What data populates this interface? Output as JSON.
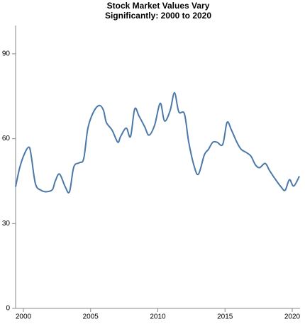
{
  "chart_data": {
    "type": "line",
    "title": [
      "Stock Market Values Vary",
      "Significantly: 2000 to 2020"
    ],
    "x": [
      1999.42,
      1999.74,
      2000.11,
      2000.42,
      2000.58,
      2000.9,
      2001.32,
      2001.74,
      2002.16,
      2002.37,
      2002.69,
      2003.11,
      2003.43,
      2003.75,
      2004.17,
      2004.49,
      2004.8,
      2005.22,
      2005.65,
      2005.96,
      2006.17,
      2006.6,
      2007.02,
      2007.23,
      2007.65,
      2007.97,
      2008.28,
      2008.6,
      2009.02,
      2009.34,
      2009.76,
      2010.18,
      2010.5,
      2010.92,
      2011.24,
      2011.56,
      2011.98,
      2012.3,
      2012.72,
      2013.03,
      2013.46,
      2013.77,
      2014.09,
      2014.41,
      2014.83,
      2015.15,
      2015.46,
      2015.88,
      2016.2,
      2016.62,
      2016.94,
      2017.26,
      2017.57,
      2017.99,
      2018.31,
      2018.73,
      2019.16,
      2019.47,
      2019.79,
      2020.11,
      2020.53
    ],
    "series": [
      {
        "color": "#4c78a8",
        "values": [
          43,
          50,
          55,
          57,
          54,
          44,
          41.75,
          41.25,
          42,
          45,
          47.5,
          43,
          41.25,
          50,
          51.5,
          53,
          63.75,
          69.5,
          71.75,
          70,
          65.75,
          63,
          58.75,
          60.75,
          63.75,
          60.75,
          70.5,
          68,
          64.25,
          61.25,
          64.75,
          72.5,
          66.25,
          70,
          76.25,
          69.5,
          68.75,
          58.75,
          50,
          47.5,
          54.25,
          56.25,
          58.75,
          58.75,
          58,
          65.75,
          63.25,
          58.75,
          56.25,
          55,
          53.75,
          50.75,
          49.75,
          51.25,
          48.75,
          45.75,
          43,
          41.75,
          45.5,
          43.25,
          46.75
        ]
      }
    ],
    "xlim": [
      1999.42,
      2020.58
    ],
    "xticks": [
      2000,
      2005,
      2010,
      2015,
      2020
    ],
    "ylim": [
      0,
      100
    ],
    "yticks": [
      0,
      30,
      60,
      90
    ]
  }
}
